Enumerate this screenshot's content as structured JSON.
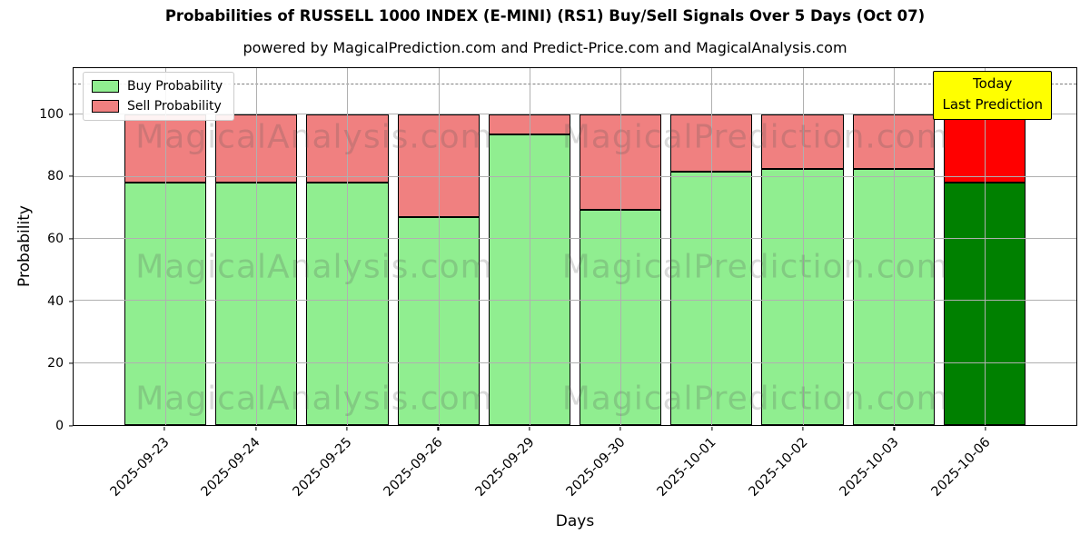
{
  "chart": {
    "title": "Probabilities of RUSSELL 1000 INDEX (E-MINI) (RS1) Buy/Sell Signals Over 5 Days (Oct 07)",
    "subtitle": "powered by MagicalPrediction.com and Predict-Price.com and MagicalAnalysis.com",
    "xlabel": "Days",
    "ylabel": "Probability",
    "legend": [
      {
        "label": "Buy Probability",
        "color": "#90ee90"
      },
      {
        "label": "Sell Probability",
        "color": "#f08080"
      }
    ],
    "annotation": {
      "line1": "Today",
      "line2": "Last Prediction",
      "bg_color": "#ffff00"
    },
    "watermarks": [
      "MagicalAnalysis.com",
      "MagicalPrediction.com"
    ],
    "colors": {
      "buy": "#90ee90",
      "sell": "#f08080",
      "today_buy": "#008000",
      "today_sell": "#ff0000",
      "grid": "#b0b0b0",
      "dashed_line": "#7f7f7f",
      "bar_edge": "#000000"
    }
  },
  "chart_data": {
    "type": "bar",
    "stacked": true,
    "title": "Probabilities of RUSSELL 1000 INDEX (E-MINI) (RS1) Buy/Sell Signals Over 5 Days (Oct 07)",
    "xlabel": "Days",
    "ylabel": "Probability",
    "categories": [
      "2025-09-23",
      "2025-09-24",
      "2025-09-25",
      "2025-09-26",
      "2025-09-29",
      "2025-09-30",
      "2025-10-01",
      "2025-10-02",
      "2025-10-03",
      "2025-10-06"
    ],
    "series": [
      {
        "name": "Buy Probability",
        "values": [
          78,
          78,
          78,
          67,
          93.5,
          69.5,
          81.5,
          82.5,
          82.5,
          78
        ],
        "color": "#90ee90",
        "today_color": "#008000"
      },
      {
        "name": "Sell Probability",
        "values": [
          22,
          22,
          22,
          33,
          6.5,
          30.5,
          18.5,
          17.5,
          17.5,
          22
        ],
        "color": "#f08080",
        "today_color": "#ff0000"
      }
    ],
    "today_index": 9,
    "yticks": [
      0,
      20,
      40,
      60,
      80,
      100
    ],
    "ylim": [
      0,
      115
    ],
    "dashed_line_y": 110,
    "grid": true,
    "legend_position": "upper left"
  }
}
